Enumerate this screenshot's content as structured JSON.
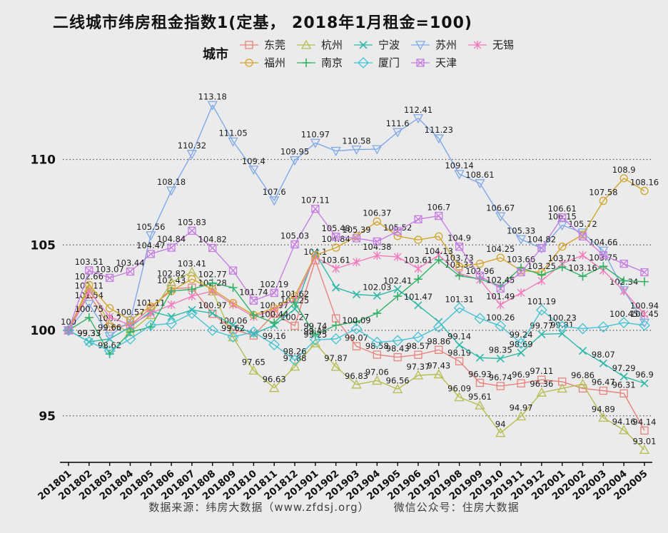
{
  "title": "二线城市纬房租金指数1(定基， 2018年1月租金=100)",
  "legend": {
    "title": "城市",
    "row_split": 5
  },
  "footer": {
    "source": "数据来源：纬房大数据（www.zfdsj.org）",
    "wechat": "微信公众号：住房大数据"
  },
  "y_axis": {
    "ticks": [
      110,
      105,
      100,
      95
    ]
  },
  "chart_data": {
    "type": "line",
    "title": "二线城市纬房租金指数1(定基， 2018年1月租金=100)",
    "x": [
      "201801",
      "201802",
      "201803",
      "201804",
      "201805",
      "201806",
      "201807",
      "201808",
      "201809",
      "201810",
      "201811",
      "201812",
      "201901",
      "201902",
      "201903",
      "201904",
      "201905",
      "201906",
      "201907",
      "201908",
      "201909",
      "201910",
      "201911",
      "201912",
      "202001",
      "202002",
      "202003",
      "202004",
      "202005"
    ],
    "ylim": [
      92.2,
      114.5
    ],
    "grid_values": [
      95,
      100,
      105,
      110
    ],
    "legend_position": "top",
    "series": [
      {
        "name": "东莞",
        "color": "#e8837c",
        "marker": "square",
        "values": [
          100,
          102.11,
          100.2,
          100.3,
          101.3,
          102.43,
          102.5,
          100.97,
          100.06,
          99.7,
          100.97,
          100.27,
          104.1,
          100.7,
          99.07,
          98.58,
          98.43,
          98.57,
          98.86,
          98.19,
          96.93,
          96.74,
          96.9,
          97.11,
          97.0,
          96.6,
          96.47,
          96.31,
          94.14
        ],
        "labeled": [
          1,
          2,
          5,
          7,
          8,
          10,
          11,
          12,
          14,
          15,
          16,
          17,
          18,
          19,
          20,
          21,
          22,
          23,
          26,
          27,
          28
        ]
      },
      {
        "name": "杭州",
        "color": "#b5bd50",
        "marker": "triangle",
        "values": [
          100,
          102.5,
          100.4,
          99.9,
          100.9,
          102.82,
          103.41,
          102.28,
          99.6,
          97.65,
          96.63,
          97.88,
          99.25,
          97.87,
          96.83,
          97.06,
          96.56,
          97.37,
          97.43,
          96.09,
          95.61,
          94,
          94.97,
          96.36,
          96.6,
          96.86,
          94.89,
          94.16,
          93.01
        ],
        "labeled": [
          5,
          6,
          7,
          9,
          10,
          11,
          12,
          13,
          14,
          15,
          16,
          17,
          18,
          19,
          20,
          21,
          22,
          23,
          25,
          26,
          27,
          28
        ]
      },
      {
        "name": "宁波",
        "color": "#2db8a8",
        "marker": "x",
        "values": [
          100,
          99.33,
          99.5,
          100.2,
          101.11,
          100.8,
          101.2,
          101.0,
          100.3,
          99.8,
          100.3,
          101.25,
          104.5,
          102.5,
          102.1,
          102.03,
          102.41,
          101.47,
          100.5,
          99.14,
          98.4,
          98.35,
          98.69,
          99.77,
          99.81,
          98.8,
          98.07,
          97.29,
          96.9
        ],
        "labeled": [
          1,
          4,
          11,
          15,
          16,
          17,
          19,
          21,
          22,
          23,
          24,
          26,
          27,
          28
        ]
      },
      {
        "name": "苏州",
        "color": "#7fa9e8",
        "marker": "triangle-down",
        "values": [
          100,
          101.54,
          99.66,
          100.57,
          105.56,
          108.18,
          110.32,
          113.18,
          111.05,
          109.4,
          107.6,
          109.95,
          110.97,
          110.5,
          110.58,
          110.6,
          111.6,
          112.41,
          111.23,
          109.14,
          108.61,
          106.67,
          105.33,
          104.8,
          106.15,
          105.72,
          104.66,
          102.34,
          100.45
        ],
        "labeled": [
          0,
          1,
          2,
          3,
          4,
          5,
          6,
          7,
          8,
          9,
          10,
          11,
          12,
          14,
          16,
          17,
          18,
          19,
          20,
          21,
          22,
          24,
          25,
          26,
          27,
          28
        ]
      },
      {
        "name": "无锡",
        "color": "#f07cbe",
        "marker": "asterisk",
        "values": [
          100,
          102.3,
          100.8,
          100.3,
          101.0,
          101.5,
          102.0,
          102.3,
          101.5,
          100.8,
          101.2,
          101.8,
          104.3,
          103.61,
          104.0,
          104.38,
          104.3,
          103.61,
          104.4,
          103.33,
          102.96,
          101.49,
          102.2,
          102.9,
          103.9,
          104.4,
          103.5,
          102.3,
          100.94
        ],
        "labeled": [
          13,
          15,
          17,
          19,
          20,
          21,
          28
        ]
      },
      {
        "name": "福州",
        "color": "#d3a42b",
        "marker": "circle",
        "values": [
          100,
          102.66,
          101.3,
          100.6,
          101.4,
          102.3,
          103.0,
          102.4,
          101.6,
          100.9,
          101.3,
          102.0,
          104.4,
          104.84,
          105.5,
          106.37,
          105.52,
          105.3,
          105.5,
          103.73,
          103.9,
          104.25,
          103.5,
          103.4,
          104.9,
          105.6,
          107.58,
          108.9,
          108.16
        ],
        "labeled": [
          1,
          13,
          15,
          16,
          19,
          21,
          26,
          27,
          28
        ]
      },
      {
        "name": "南京",
        "color": "#33b267",
        "marker": "plus",
        "values": [
          100,
          100.75,
          98.62,
          99.9,
          100.2,
          102.3,
          102.4,
          102.77,
          102.5,
          100.9,
          100.44,
          101.62,
          99.74,
          100.3,
          100.5,
          101.0,
          102.0,
          103.0,
          104.13,
          103.2,
          103.0,
          102.6,
          103.66,
          103.25,
          103.71,
          103.16,
          103.75,
          102.9,
          102.85
        ],
        "labeled": [
          1,
          2,
          7,
          10,
          11,
          12,
          18,
          22,
          23,
          24,
          25,
          26
        ]
      },
      {
        "name": "厦门",
        "color": "#45c2d5",
        "marker": "diamond",
        "values": [
          100,
          99.33,
          98.8,
          99.5,
          100.3,
          100.4,
          101.0,
          100.0,
          99.62,
          99.9,
          99.16,
          98.26,
          99.45,
          99.5,
          100.09,
          99.3,
          99.4,
          99.6,
          100.2,
          101.31,
          100.7,
          100.26,
          99.24,
          101.19,
          100.23,
          100.1,
          100.2,
          100.45,
          100.3
        ],
        "labeled": [
          1,
          8,
          10,
          11,
          12,
          14,
          19,
          21,
          22,
          23,
          24,
          27
        ]
      },
      {
        "name": "天津",
        "color": "#c77fe2",
        "marker": "square-x",
        "values": [
          100,
          103.51,
          103.07,
          103.44,
          104.47,
          104.84,
          105.83,
          104.82,
          103.5,
          101.74,
          102.19,
          105.03,
          107.11,
          105.48,
          105.39,
          105.2,
          105.8,
          106.5,
          106.7,
          104.9,
          103.2,
          102.45,
          103.4,
          104.82,
          106.61,
          105.5,
          104.4,
          103.9,
          103.4
        ],
        "labeled": [
          1,
          2,
          3,
          4,
          5,
          6,
          7,
          9,
          10,
          11,
          12,
          13,
          14,
          18,
          19,
          21,
          23,
          24
        ]
      }
    ]
  }
}
